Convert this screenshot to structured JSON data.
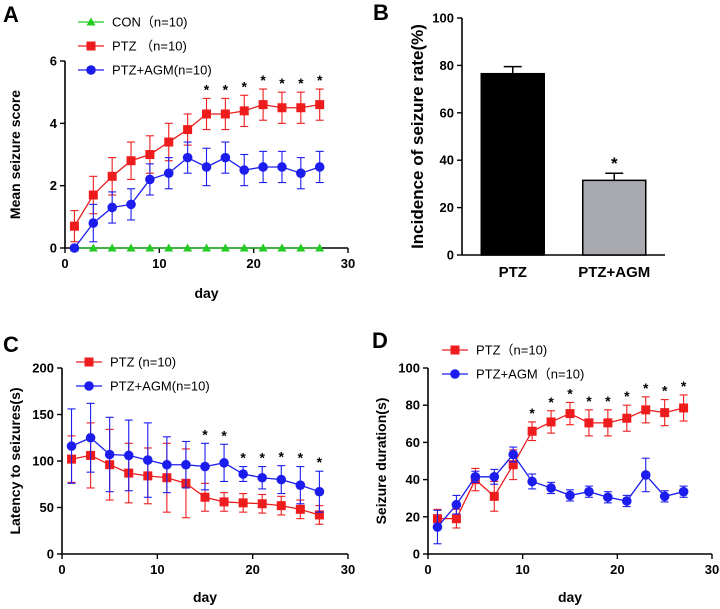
{
  "chart_data": [
    {
      "panel": "A",
      "type": "line",
      "xlabel": "day",
      "ylabel": "Mean seizure score",
      "xlim": [
        0,
        30
      ],
      "ylim": [
        0,
        6
      ],
      "xticks": [
        0,
        10,
        20,
        30
      ],
      "yticks": [
        0,
        2,
        4,
        6
      ],
      "x": [
        1,
        3,
        5,
        7,
        9,
        11,
        13,
        15,
        17,
        19,
        21,
        23,
        25,
        27
      ],
      "series": [
        {
          "name": "CON（n=10)",
          "color": "#22cc22",
          "marker": "triangle",
          "values": [
            0,
            0,
            0,
            0,
            0,
            0,
            0,
            0,
            0,
            0,
            0,
            0,
            0,
            0
          ],
          "errors": [
            0,
            0,
            0,
            0,
            0,
            0,
            0,
            0,
            0,
            0,
            0,
            0,
            0,
            0
          ]
        },
        {
          "name": "PTZ （n=10)",
          "color": "#ee1c1c",
          "marker": "square",
          "values": [
            0.7,
            1.7,
            2.3,
            2.8,
            3.0,
            3.4,
            3.8,
            4.3,
            4.3,
            4.4,
            4.6,
            4.5,
            4.5,
            4.6
          ],
          "errors": [
            0.5,
            0.6,
            0.6,
            0.6,
            0.6,
            0.6,
            0.5,
            0.5,
            0.5,
            0.5,
            0.5,
            0.5,
            0.5,
            0.5
          ]
        },
        {
          "name": "PTZ+AGM(n=10)",
          "color": "#1c1cee",
          "marker": "circle",
          "values": [
            0,
            0.8,
            1.3,
            1.4,
            2.2,
            2.4,
            2.9,
            2.6,
            2.9,
            2.5,
            2.6,
            2.6,
            2.4,
            2.6
          ],
          "errors": [
            0,
            0.6,
            0.5,
            0.5,
            0.5,
            0.5,
            0.5,
            0.6,
            0.5,
            0.5,
            0.5,
            0.5,
            0.5,
            0.5
          ]
        }
      ],
      "significance": {
        "x": [
          15,
          17,
          19,
          21,
          23,
          25,
          27
        ],
        "label": "*"
      },
      "legend": "top-left"
    },
    {
      "panel": "B",
      "type": "bar",
      "ylabel": "Incidence of seizure rate(%)",
      "ylim": [
        0,
        100
      ],
      "yticks": [
        0,
        20,
        40,
        60,
        80,
        100
      ],
      "categories": [
        "PTZ",
        "PTZ+AGM"
      ],
      "values": [
        76.5,
        31.5
      ],
      "errors": [
        3,
        3
      ],
      "colors": [
        "#000000",
        "#a9a9b0"
      ],
      "annotations": [
        "",
        "*"
      ]
    },
    {
      "panel": "C",
      "type": "line",
      "xlabel": "day",
      "ylabel": "Latency to seizures(s)",
      "xlim": [
        0,
        30
      ],
      "ylim": [
        0,
        200
      ],
      "xticks": [
        0,
        10,
        20,
        30
      ],
      "yticks": [
        0,
        50,
        100,
        150,
        200
      ],
      "x": [
        1,
        3,
        5,
        7,
        9,
        11,
        13,
        15,
        17,
        19,
        21,
        23,
        25,
        27
      ],
      "series": [
        {
          "name": "PTZ (n=10)",
          "color": "#ee1c1c",
          "marker": "square",
          "values": [
            102,
            106,
            96,
            87,
            84,
            82,
            76,
            61,
            56,
            55,
            54,
            52,
            48,
            42
          ],
          "errors": [
            25,
            35,
            38,
            32,
            30,
            37,
            37,
            15,
            10,
            10,
            10,
            10,
            10,
            10
          ]
        },
        {
          "name": "PTZ+AGM(n=10)",
          "color": "#1c1cee",
          "marker": "circle",
          "values": [
            116,
            125,
            107,
            106,
            101,
            96,
            96,
            94,
            98,
            86,
            82,
            80,
            74,
            67
          ],
          "errors": [
            40,
            37,
            40,
            38,
            40,
            30,
            25,
            25,
            20,
            8,
            12,
            15,
            20,
            22
          ]
        }
      ],
      "significance": {
        "x": [
          15,
          17,
          19,
          21,
          23,
          25,
          27
        ],
        "label": "*"
      },
      "legend": "top-left"
    },
    {
      "panel": "D",
      "type": "line",
      "xlabel": "day",
      "ylabel": "Seizure duration(s)",
      "xlim": [
        0,
        30
      ],
      "ylim": [
        0,
        100
      ],
      "xticks": [
        0,
        10,
        20,
        30
      ],
      "yticks": [
        0,
        20,
        40,
        60,
        80,
        100
      ],
      "x": [
        1,
        3,
        5,
        7,
        9,
        11,
        13,
        15,
        17,
        19,
        21,
        23,
        25,
        27
      ],
      "series": [
        {
          "name": "PTZ（n=10)",
          "color": "#ee1c1c",
          "marker": "square",
          "values": [
            19,
            19,
            40,
            31,
            48,
            66,
            71,
            75.5,
            70.5,
            70.5,
            73,
            77.5,
            76,
            78.5
          ],
          "errors": [
            5,
            5,
            6,
            8,
            8,
            5,
            6,
            6,
            7,
            7,
            7,
            7,
            7,
            7
          ]
        },
        {
          "name": "PTZ+AGM（n=10)",
          "color": "#1c1cee",
          "marker": "circle",
          "values": [
            14.5,
            26.5,
            41.5,
            41.5,
            53.5,
            39,
            35.5,
            31.5,
            33.5,
            30.5,
            28.5,
            42.5,
            31,
            33.5
          ],
          "errors": [
            9,
            5,
            3,
            4,
            4,
            4,
            3,
            3,
            3,
            3,
            3,
            9,
            3,
            3
          ]
        }
      ],
      "significance": {
        "x": [
          11,
          13,
          15,
          17,
          19,
          21,
          23,
          25,
          27
        ],
        "label": "*"
      },
      "legend": "top-left"
    }
  ]
}
